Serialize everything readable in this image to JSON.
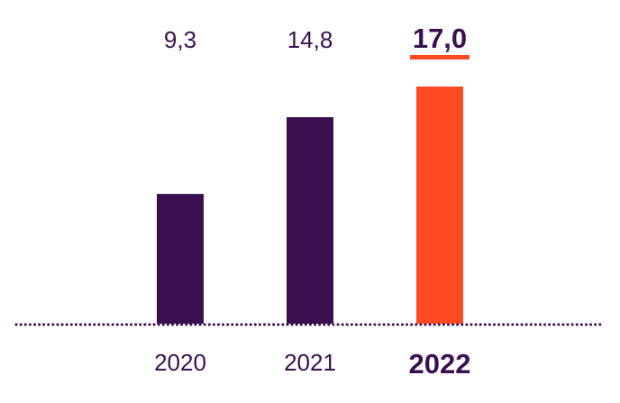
{
  "chart_data": {
    "type": "bar",
    "categories": [
      "2020",
      "2021",
      "2022"
    ],
    "values": [
      9.3,
      14.8,
      17.0
    ],
    "value_labels": [
      "9,3",
      "14,8",
      "17,0"
    ],
    "highlight_index": 2,
    "ylim": [
      0,
      19
    ],
    "grid": false,
    "legend": "none",
    "baseline_style": "dotted"
  },
  "colors": {
    "bar": "#3a0f4f",
    "highlight": "#ff4a22",
    "text": "#3a0f4f",
    "baseline": "#3a0f4f"
  }
}
